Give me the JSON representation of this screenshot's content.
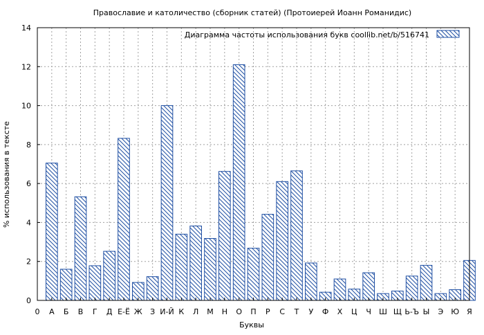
{
  "chart_data": {
    "type": "bar",
    "title": "Православие и католичество (сборник статей) (Протоиерей Иоанн Романидис)",
    "xlabel": "Буквы",
    "ylabel": "% использования в тексте",
    "ylim": [
      0,
      14
    ],
    "yticks": [
      "0",
      "2",
      "4",
      "6",
      "8",
      "10",
      "12",
      "14"
    ],
    "grid": true,
    "legend_position": "top-right",
    "series": [
      {
        "name": "Диаграмма частоты использования букв  coollib.net/b/516741",
        "values": [
          7.05,
          1.6,
          5.32,
          1.78,
          2.52,
          8.32,
          0.92,
          1.22,
          10.0,
          3.4,
          3.82,
          3.18,
          6.62,
          12.1,
          2.68,
          4.42,
          6.1,
          6.65,
          1.92,
          0.42,
          1.1,
          0.58,
          1.42,
          0.35,
          0.48,
          1.25,
          1.8,
          0.35,
          0.55,
          2.05
        ]
      }
    ],
    "categories": [
      "А",
      "Б",
      "В",
      "Г",
      "Д",
      "Е-Ё",
      "Ж",
      "З",
      "И-Й",
      "К",
      "Л",
      "М",
      "Н",
      "О",
      "П",
      "Р",
      "С",
      "Т",
      "У",
      "Ф",
      "Х",
      "Ц",
      "Ч",
      "Ш",
      "Щ",
      "Ь-Ъ",
      "Ы",
      "Э",
      "Ю",
      "Я"
    ],
    "xticks": [
      "0",
      "А",
      "Б",
      "В",
      "Г",
      "Д",
      "Е-Ё",
      "Ж",
      "З",
      "И-Й",
      "К",
      "Л",
      "М",
      "Н",
      "О",
      "П",
      "Р",
      "С",
      "Т",
      "У",
      "Ф",
      "Х",
      "Ц",
      "Ч",
      "Ш",
      "Щ",
      "Ь-Ъ",
      "Ы",
      "Э",
      "Ю",
      "Я"
    ],
    "colors": {
      "bar_stroke": "#1f4fa3",
      "hatch": "#1f4fa3",
      "grid": "#a0a0a0",
      "axis": "#000000"
    }
  }
}
